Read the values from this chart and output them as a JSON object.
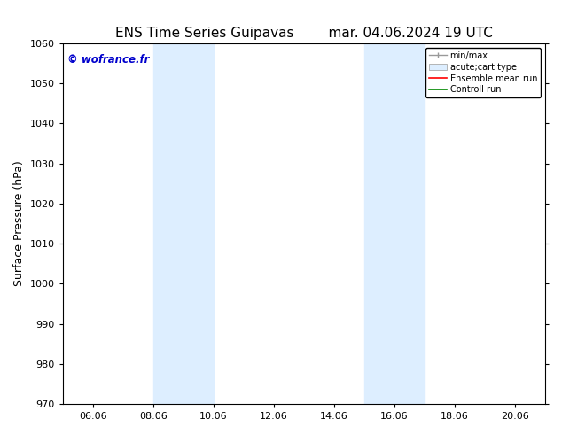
{
  "title_left": "ENS Time Series Guipavas",
  "title_right": "mar. 04.06.2024 19 UTC",
  "ylabel": "Surface Pressure (hPa)",
  "ylim": [
    970,
    1060
  ],
  "yticks": [
    970,
    980,
    990,
    1000,
    1010,
    1020,
    1030,
    1040,
    1050,
    1060
  ],
  "xtick_labels": [
    "06.06",
    "08.06",
    "10.06",
    "12.06",
    "14.06",
    "16.06",
    "18.06",
    "20.06"
  ],
  "shaded_color": "#ddeeff",
  "shaded_color2": "#cce8f8",
  "background_color": "#ffffff",
  "watermark_text": "© wofrance.fr",
  "watermark_color": "#0000cc",
  "legend_items": [
    {
      "label": "min/max",
      "color": "#aaaaaa",
      "type": "errorbar"
    },
    {
      "label": "acute;cart type",
      "color": "#cce8f8",
      "type": "box"
    },
    {
      "label": "Ensemble mean run",
      "color": "#ff0000",
      "type": "line"
    },
    {
      "label": "Controll run",
      "color": "#008800",
      "type": "line"
    }
  ],
  "title_fontsize": 11,
  "tick_fontsize": 8,
  "ylabel_fontsize": 9,
  "legend_fontsize": 7
}
